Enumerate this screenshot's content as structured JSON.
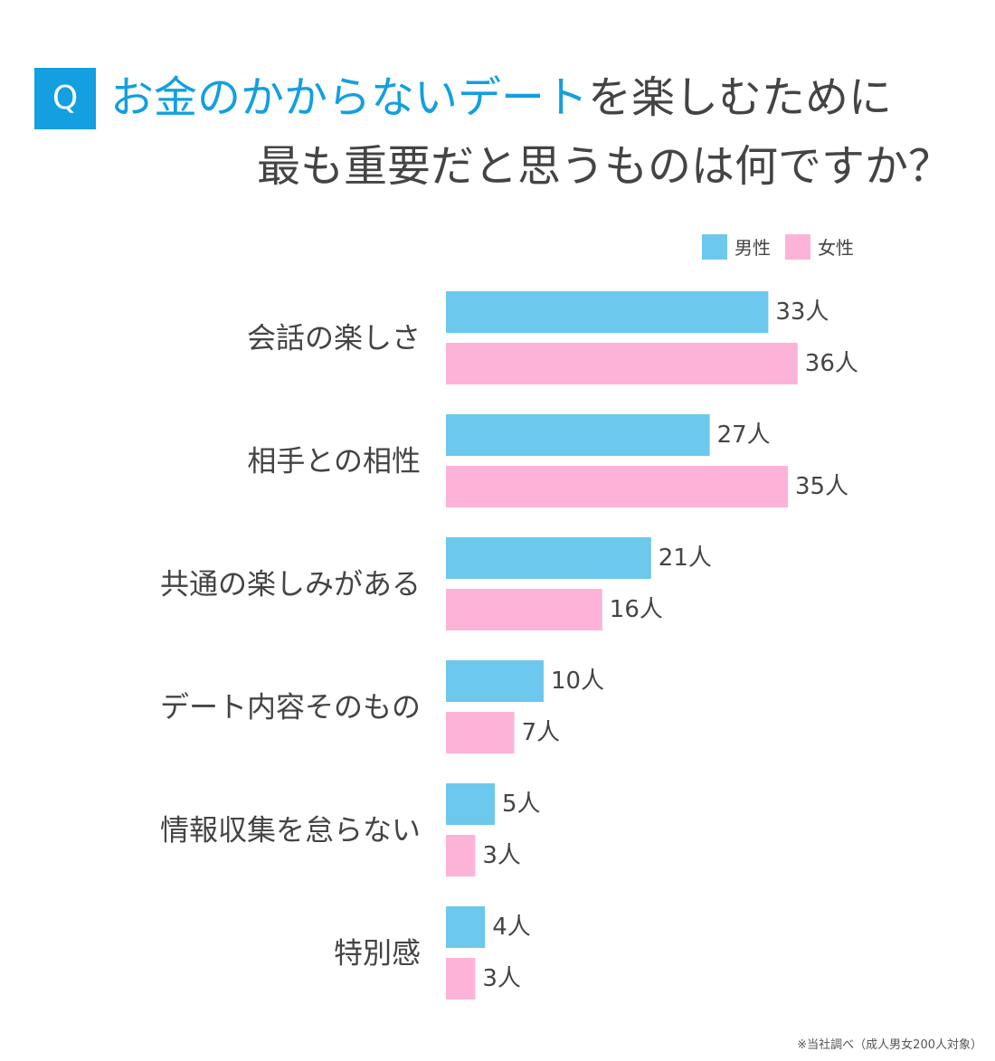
{
  "question_badge": "Q",
  "title": {
    "line1_highlight": "お金のかからないデート",
    "line1_rest": "を楽しむために",
    "line2": "最も重要だと思うものは何ですか？"
  },
  "footnote": "※当社調べ（成人男女200人対象）",
  "colors": {
    "male": "#6cc8ec",
    "female": "#fdb3d8",
    "accent": "#139fe0"
  },
  "chart_data": {
    "type": "bar",
    "orientation": "horizontal",
    "categories": [
      "会話の楽しさ",
      "相手との相性",
      "共通の楽しみがある",
      "デート内容そのもの",
      "情報収集を怠らない",
      "特別感"
    ],
    "series": [
      {
        "name": "男性",
        "values": [
          33,
          27,
          21,
          10,
          5,
          4
        ]
      },
      {
        "name": "女性",
        "values": [
          36,
          35,
          16,
          7,
          3,
          3
        ]
      }
    ],
    "unit": "人",
    "legend": "top-right"
  }
}
